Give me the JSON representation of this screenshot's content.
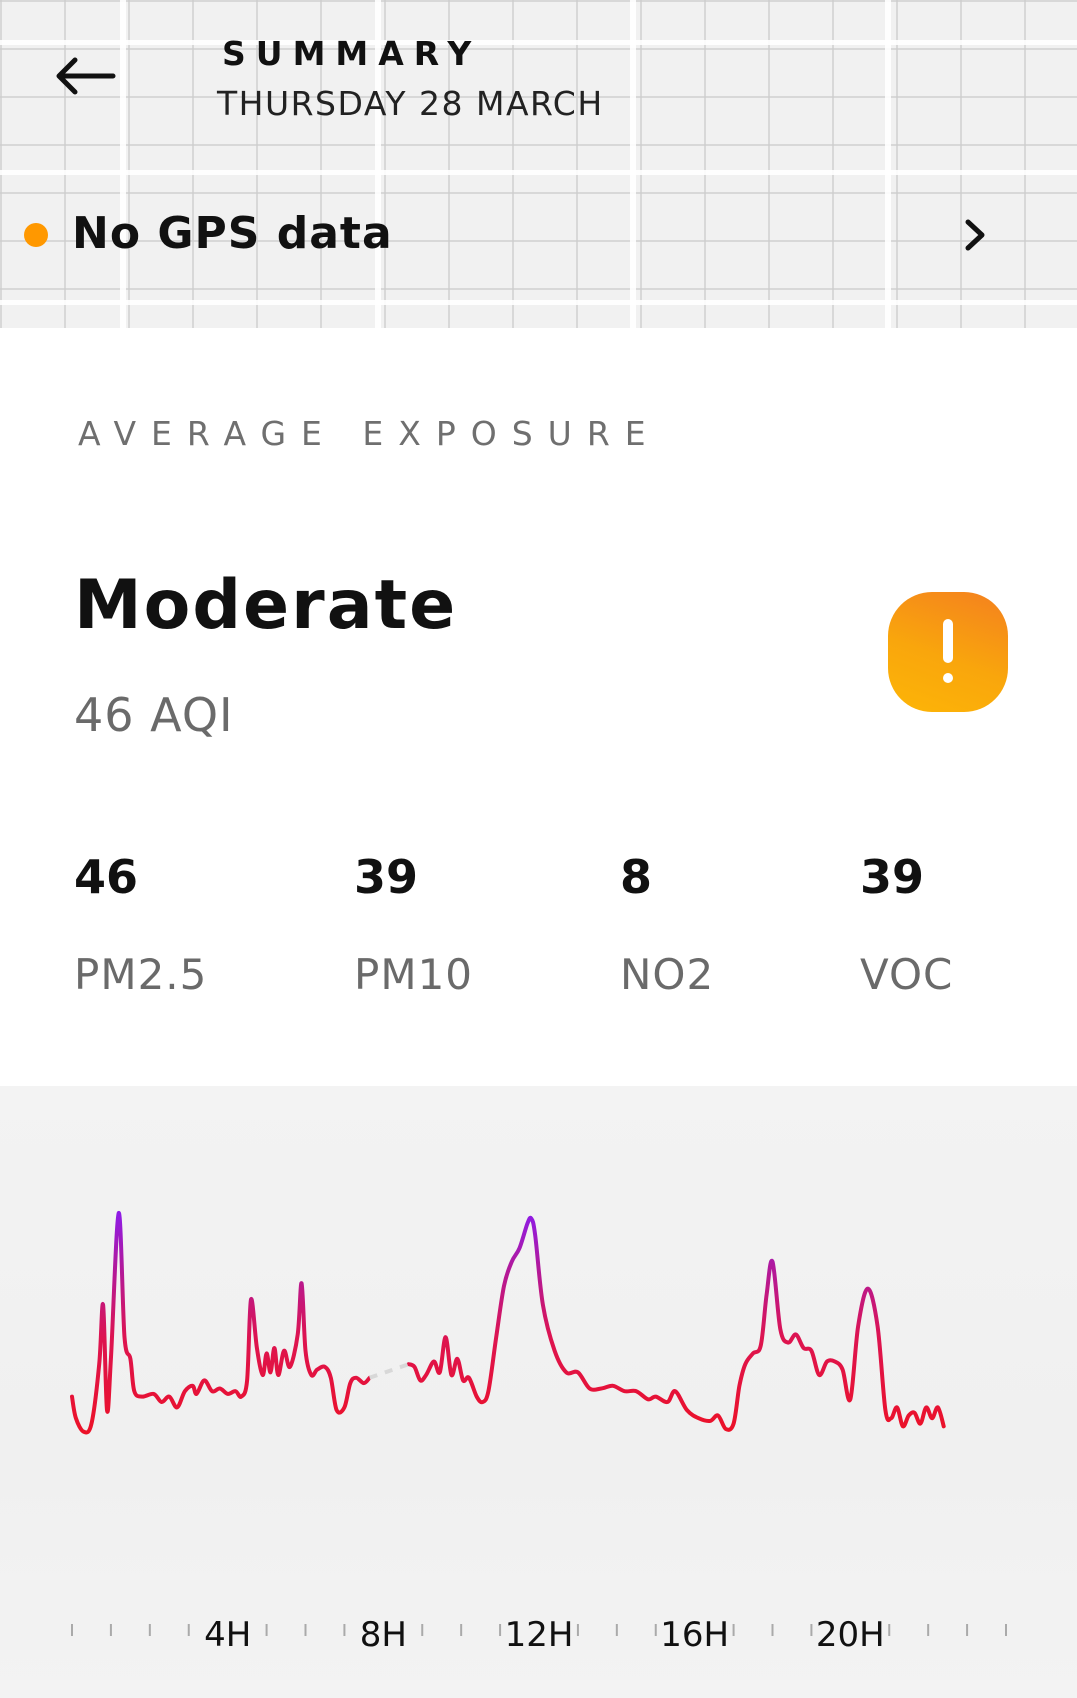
{
  "header": {
    "title": "SUMMARY",
    "date": "THURSDAY 28 MARCH",
    "back_icon": "arrow-left-icon",
    "gps": {
      "label": "No GPS data",
      "status_color": "#ff9800",
      "chevron_icon": "chevron-right-icon"
    }
  },
  "exposure": {
    "section_label": "AVERAGE EXPOSURE",
    "level": "Moderate",
    "aqi": "46 AQI",
    "badge_icon": "exclamation-icon",
    "badge_color": "#f9a60c",
    "pollutants": [
      {
        "value": "46",
        "name": "PM2.5"
      },
      {
        "value": "39",
        "name": "PM10"
      },
      {
        "value": "8",
        "name": "NO2"
      },
      {
        "value": "39",
        "name": "VOC"
      }
    ]
  },
  "chart_data": {
    "type": "line",
    "title": "",
    "xlabel": "",
    "ylabel": "",
    "x_unit": "hour",
    "x_range": [
      0,
      24
    ],
    "tick_labels": [
      "4H",
      "8H",
      "12H",
      "16H",
      "20H"
    ],
    "tick_label_values": [
      4,
      8,
      12,
      16,
      20
    ],
    "minor_tick_step": 1,
    "grid": false,
    "color_scale": {
      "low": "#ee1122",
      "high": "#8a1cf0"
    },
    "gap": [
      7.7,
      8.6
    ],
    "y_range": [
      0,
      100
    ],
    "points": [
      [
        0.0,
        22
      ],
      [
        0.1,
        14
      ],
      [
        0.3,
        9
      ],
      [
        0.5,
        12
      ],
      [
        0.7,
        34
      ],
      [
        0.8,
        56
      ],
      [
        0.9,
        17
      ],
      [
        1.0,
        36
      ],
      [
        1.2,
        90
      ],
      [
        1.35,
        44
      ],
      [
        1.5,
        36
      ],
      [
        1.6,
        24
      ],
      [
        1.8,
        22
      ],
      [
        2.1,
        23
      ],
      [
        2.3,
        20
      ],
      [
        2.5,
        22
      ],
      [
        2.7,
        18
      ],
      [
        2.9,
        24
      ],
      [
        3.1,
        26
      ],
      [
        3.2,
        23
      ],
      [
        3.4,
        28
      ],
      [
        3.6,
        24
      ],
      [
        3.8,
        25
      ],
      [
        4.0,
        23
      ],
      [
        4.2,
        24
      ],
      [
        4.35,
        22
      ],
      [
        4.5,
        28
      ],
      [
        4.6,
        58
      ],
      [
        4.75,
        40
      ],
      [
        4.9,
        30
      ],
      [
        5.0,
        38
      ],
      [
        5.1,
        31
      ],
      [
        5.2,
        40
      ],
      [
        5.3,
        30
      ],
      [
        5.45,
        39
      ],
      [
        5.6,
        33
      ],
      [
        5.8,
        45
      ],
      [
        5.9,
        64
      ],
      [
        6.0,
        39
      ],
      [
        6.15,
        30
      ],
      [
        6.3,
        32
      ],
      [
        6.5,
        33
      ],
      [
        6.65,
        29
      ],
      [
        6.8,
        17
      ],
      [
        7.0,
        18
      ],
      [
        7.15,
        27
      ],
      [
        7.3,
        29
      ],
      [
        7.5,
        27
      ],
      [
        7.65,
        29
      ],
      [
        8.65,
        34
      ],
      [
        8.8,
        33
      ],
      [
        8.95,
        28
      ],
      [
        9.1,
        30
      ],
      [
        9.3,
        35
      ],
      [
        9.45,
        31
      ],
      [
        9.6,
        44
      ],
      [
        9.75,
        30
      ],
      [
        9.9,
        36
      ],
      [
        10.05,
        28
      ],
      [
        10.2,
        29
      ],
      [
        10.4,
        22
      ],
      [
        10.55,
        20
      ],
      [
        10.7,
        24
      ],
      [
        10.9,
        44
      ],
      [
        11.1,
        63
      ],
      [
        11.3,
        72
      ],
      [
        11.5,
        77
      ],
      [
        11.7,
        86
      ],
      [
        11.8,
        88
      ],
      [
        11.9,
        82
      ],
      [
        12.1,
        56
      ],
      [
        12.4,
        39
      ],
      [
        12.7,
        31
      ],
      [
        13.0,
        31
      ],
      [
        13.3,
        25
      ],
      [
        13.6,
        25
      ],
      [
        13.9,
        26
      ],
      [
        14.2,
        24
      ],
      [
        14.5,
        24
      ],
      [
        14.8,
        21
      ],
      [
        15.0,
        22
      ],
      [
        15.3,
        20
      ],
      [
        15.5,
        24
      ],
      [
        15.8,
        17
      ],
      [
        16.1,
        14
      ],
      [
        16.4,
        13
      ],
      [
        16.6,
        15
      ],
      [
        16.8,
        10
      ],
      [
        17.0,
        12
      ],
      [
        17.15,
        26
      ],
      [
        17.3,
        34
      ],
      [
        17.5,
        38
      ],
      [
        17.7,
        41
      ],
      [
        17.85,
        60
      ],
      [
        18.0,
        72
      ],
      [
        18.2,
        47
      ],
      [
        18.4,
        42
      ],
      [
        18.6,
        45
      ],
      [
        18.8,
        40
      ],
      [
        19.0,
        39
      ],
      [
        19.2,
        30
      ],
      [
        19.4,
        35
      ],
      [
        19.6,
        35
      ],
      [
        19.8,
        32
      ],
      [
        20.0,
        21
      ],
      [
        20.2,
        48
      ],
      [
        20.45,
        62
      ],
      [
        20.7,
        48
      ],
      [
        20.9,
        17
      ],
      [
        21.05,
        14
      ],
      [
        21.2,
        18
      ],
      [
        21.35,
        11
      ],
      [
        21.5,
        15
      ],
      [
        21.65,
        16
      ],
      [
        21.8,
        12
      ],
      [
        21.95,
        18
      ],
      [
        22.1,
        14
      ],
      [
        22.25,
        18
      ],
      [
        22.4,
        11
      ]
    ]
  }
}
